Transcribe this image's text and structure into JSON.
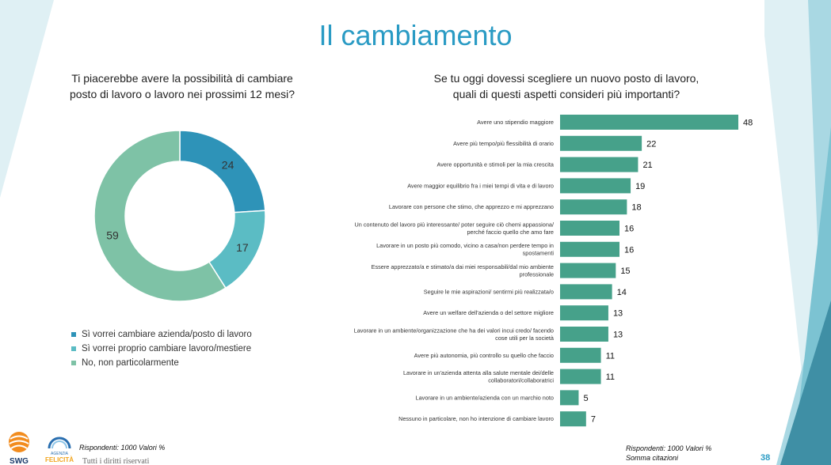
{
  "title": "Il cambiamento",
  "question_left": {
    "line1": "Ti piacerebbe avere la possibilità di cambiare",
    "line2": "posto di lavoro o lavoro nei prossimi 12 mesi?"
  },
  "question_right": {
    "line1": "Se tu oggi dovessi scegliere un nuovo posto di lavoro,",
    "line2": "quali di questi aspetti consideri più importanti?"
  },
  "colors": {
    "accent": "#2a9bc4",
    "donut": [
      "#2e93b8",
      "#5bbcc4",
      "#7ec2a6"
    ],
    "bar": "#46a18a",
    "deco_dark": "#3f8fa5",
    "deco_light": "#a9d8e3",
    "deco_pale": "#dff0f4"
  },
  "chart_data": [
    {
      "type": "pie",
      "variant": "donut",
      "series": [
        {
          "name": "Sì vorrei cambiare azienda/posto di lavoro",
          "value": 24
        },
        {
          "name": "Sì vorrei proprio cambiare lavoro/mestiere",
          "value": 17
        },
        {
          "name": "No, non particolarmente",
          "value": 59
        }
      ],
      "legend": "bottom"
    },
    {
      "type": "bar",
      "orientation": "horizontal",
      "categories": [
        [
          "Avere uno stipendio maggiore"
        ],
        [
          "Avere più tempo/più flessibilità di orario"
        ],
        [
          "Avere opportunità e stimoli per la mia crescita"
        ],
        [
          "Avere maggior equilibrio fra i miei tempi di vita e di lavoro"
        ],
        [
          "Lavorare con persone che stimo, che apprezzo e mi apprezzano"
        ],
        [
          "Un contenuto del lavoro più interessante/ poter seguire ciò chemi appassiona/",
          "perché faccio quello che amo fare"
        ],
        [
          "Lavorare in un posto più comodo, vicino a casa/non perdere tempo in",
          "spostamenti"
        ],
        [
          "Essere apprezzato/a e stimato/a dai miei responsabili/dal mio ambiente",
          "professionale"
        ],
        [
          "Seguire le mie aspirazioni/ sentirmi più realizzata/o"
        ],
        [
          "Avere un welfare dell'azienda o del settore migliore"
        ],
        [
          "Lavorare in un ambiente/organizzazione che ha dei valori incui credo/ facendo",
          "cose utili per la società"
        ],
        [
          "Avere più autonomia, più controllo su quello che faccio"
        ],
        [
          "Lavorare in un'azienda attenta alla salute mentale dei/delle",
          "collaboratori/collaboratrici"
        ],
        [
          "Lavorare in un ambiente/azienda con un marchio noto"
        ],
        [
          "Nessuno in particolare, non ho intenzione di cambiare lavoro"
        ]
      ],
      "values": [
        48,
        22,
        21,
        19,
        18,
        16,
        16,
        15,
        14,
        13,
        13,
        11,
        11,
        5,
        7
      ],
      "xlim": [
        0,
        48
      ],
      "grid": false
    }
  ],
  "footer": {
    "left": "Rispondenti: 1000 Valori %",
    "right_line1": "Rispondenti: 1000 Valori %",
    "right_line2": "Somma citazioni",
    "rights": "Tutti i diritti riservati",
    "page": "38"
  },
  "logos": {
    "swg": "SWG",
    "felicita_small": "AGENZIA",
    "felicita": "FELICITÀ"
  }
}
